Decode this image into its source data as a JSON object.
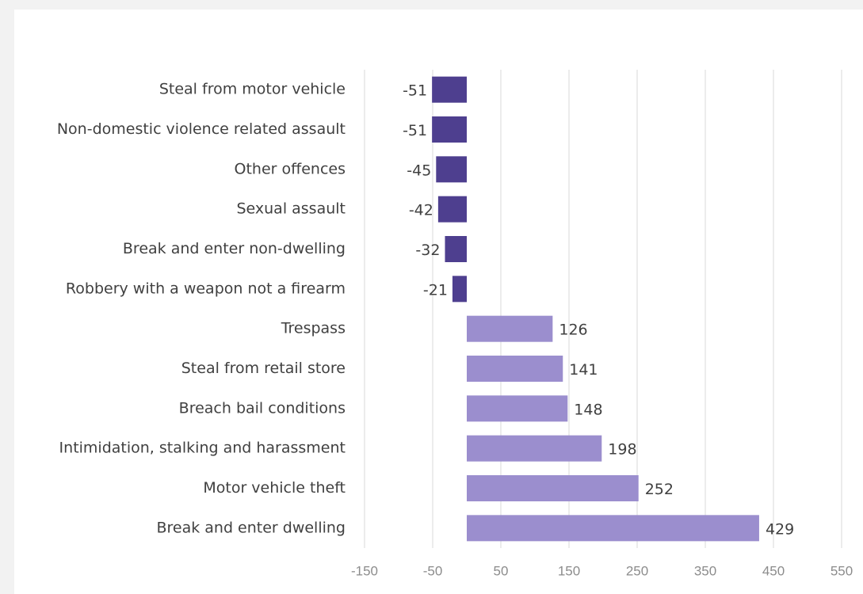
{
  "chart_data": {
    "type": "hbar",
    "categories": [
      "Steal from motor vehicle",
      "Non-domestic violence related assault",
      "Other offences",
      "Sexual assault",
      "Break and enter non-dwelling",
      "Robbery with a weapon not a firearm",
      "Trespass",
      "Steal from retail store",
      "Breach bail conditions",
      "Intimidation, stalking and harassment",
      "Motor vehicle theft",
      "Break and enter dwelling"
    ],
    "values": [
      -51,
      -51,
      -45,
      -42,
      -32,
      -21,
      126,
      141,
      148,
      198,
      252,
      429
    ],
    "negative_color": "#4e3f8f",
    "positive_color": "#9b8ece",
    "xlim": [
      -150,
      550
    ],
    "xticks": [
      -150,
      -50,
      50,
      150,
      250,
      350,
      450,
      550
    ],
    "grid": true
  }
}
